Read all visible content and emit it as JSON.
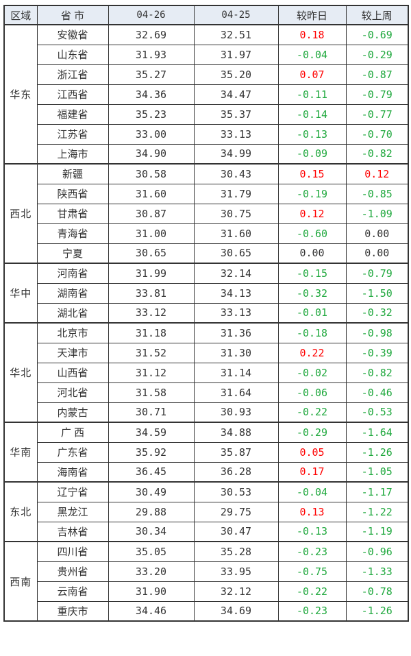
{
  "colors": {
    "positive_change": "#ff0000",
    "negative_change": "#1fa83d",
    "neutral_text": "#333333",
    "header_background": "#e6ecf4",
    "table_border": "#333333"
  },
  "chart_data": {
    "type": "table",
    "columns": [
      "区域",
      "省 市",
      "04-26",
      "04-25",
      "较昨日",
      "较上周"
    ],
    "regions": [
      {
        "name": "华东",
        "rows": [
          {
            "province": "安徽省",
            "price_0426": "32.69",
            "price_0425": "32.51",
            "vs_yesterday": "0.18",
            "vs_last_week": "-0.69"
          },
          {
            "province": "山东省",
            "price_0426": "31.93",
            "price_0425": "31.97",
            "vs_yesterday": "-0.04",
            "vs_last_week": "-0.29"
          },
          {
            "province": "浙江省",
            "price_0426": "35.27",
            "price_0425": "35.20",
            "vs_yesterday": "0.07",
            "vs_last_week": "-0.87"
          },
          {
            "province": "江西省",
            "price_0426": "34.36",
            "price_0425": "34.47",
            "vs_yesterday": "-0.11",
            "vs_last_week": "-0.79"
          },
          {
            "province": "福建省",
            "price_0426": "35.23",
            "price_0425": "35.37",
            "vs_yesterday": "-0.14",
            "vs_last_week": "-0.77"
          },
          {
            "province": "江苏省",
            "price_0426": "33.00",
            "price_0425": "33.13",
            "vs_yesterday": "-0.13",
            "vs_last_week": "-0.70"
          },
          {
            "province": "上海市",
            "price_0426": "34.90",
            "price_0425": "34.99",
            "vs_yesterday": "-0.09",
            "vs_last_week": "-0.82"
          }
        ]
      },
      {
        "name": "西北",
        "rows": [
          {
            "province": "新疆",
            "price_0426": "30.58",
            "price_0425": "30.43",
            "vs_yesterday": "0.15",
            "vs_last_week": "0.12"
          },
          {
            "province": "陕西省",
            "price_0426": "31.60",
            "price_0425": "31.79",
            "vs_yesterday": "-0.19",
            "vs_last_week": "-0.85"
          },
          {
            "province": "甘肃省",
            "price_0426": "30.87",
            "price_0425": "30.75",
            "vs_yesterday": "0.12",
            "vs_last_week": "-1.09"
          },
          {
            "province": "青海省",
            "price_0426": "31.00",
            "price_0425": "31.60",
            "vs_yesterday": "-0.60",
            "vs_last_week": "0.00"
          },
          {
            "province": "宁夏",
            "price_0426": "30.65",
            "price_0425": "30.65",
            "vs_yesterday": "0.00",
            "vs_last_week": "0.00"
          }
        ]
      },
      {
        "name": "华中",
        "rows": [
          {
            "province": "河南省",
            "price_0426": "31.99",
            "price_0425": "32.14",
            "vs_yesterday": "-0.15",
            "vs_last_week": "-0.79"
          },
          {
            "province": "湖南省",
            "price_0426": "33.81",
            "price_0425": "34.13",
            "vs_yesterday": "-0.32",
            "vs_last_week": "-1.50"
          },
          {
            "province": "湖北省",
            "price_0426": "33.12",
            "price_0425": "33.13",
            "vs_yesterday": "-0.01",
            "vs_last_week": "-0.32"
          }
        ]
      },
      {
        "name": "华北",
        "rows": [
          {
            "province": "北京市",
            "price_0426": "31.18",
            "price_0425": "31.36",
            "vs_yesterday": "-0.18",
            "vs_last_week": "-0.98"
          },
          {
            "province": "天津市",
            "price_0426": "31.52",
            "price_0425": "31.30",
            "vs_yesterday": "0.22",
            "vs_last_week": "-0.39"
          },
          {
            "province": "山西省",
            "price_0426": "31.12",
            "price_0425": "31.14",
            "vs_yesterday": "-0.02",
            "vs_last_week": "-0.82"
          },
          {
            "province": "河北省",
            "price_0426": "31.58",
            "price_0425": "31.64",
            "vs_yesterday": "-0.06",
            "vs_last_week": "-0.46"
          },
          {
            "province": "内蒙古",
            "price_0426": "30.71",
            "price_0425": "30.93",
            "vs_yesterday": "-0.22",
            "vs_last_week": "-0.53"
          }
        ]
      },
      {
        "name": "华南",
        "rows": [
          {
            "province": "广 西",
            "price_0426": "34.59",
            "price_0425": "34.88",
            "vs_yesterday": "-0.29",
            "vs_last_week": "-1.64"
          },
          {
            "province": "广东省",
            "price_0426": "35.92",
            "price_0425": "35.87",
            "vs_yesterday": "0.05",
            "vs_last_week": "-1.26"
          },
          {
            "province": "海南省",
            "price_0426": "36.45",
            "price_0425": "36.28",
            "vs_yesterday": "0.17",
            "vs_last_week": "-1.05"
          }
        ]
      },
      {
        "name": "东北",
        "rows": [
          {
            "province": "辽宁省",
            "price_0426": "30.49",
            "price_0425": "30.53",
            "vs_yesterday": "-0.04",
            "vs_last_week": "-1.17"
          },
          {
            "province": "黑龙江",
            "price_0426": "29.88",
            "price_0425": "29.75",
            "vs_yesterday": "0.13",
            "vs_last_week": "-1.22"
          },
          {
            "province": "吉林省",
            "price_0426": "30.34",
            "price_0425": "30.47",
            "vs_yesterday": "-0.13",
            "vs_last_week": "-1.19"
          }
        ]
      },
      {
        "name": "西南",
        "rows": [
          {
            "province": "四川省",
            "price_0426": "35.05",
            "price_0425": "35.28",
            "vs_yesterday": "-0.23",
            "vs_last_week": "-0.96"
          },
          {
            "province": "贵州省",
            "price_0426": "33.20",
            "price_0425": "33.95",
            "vs_yesterday": "-0.75",
            "vs_last_week": "-1.33"
          },
          {
            "province": "云南省",
            "price_0426": "31.90",
            "price_0425": "32.12",
            "vs_yesterday": "-0.22",
            "vs_last_week": "-0.78"
          },
          {
            "province": "重庆市",
            "price_0426": "34.46",
            "price_0425": "34.69",
            "vs_yesterday": "-0.23",
            "vs_last_week": "-1.26"
          }
        ]
      }
    ]
  }
}
